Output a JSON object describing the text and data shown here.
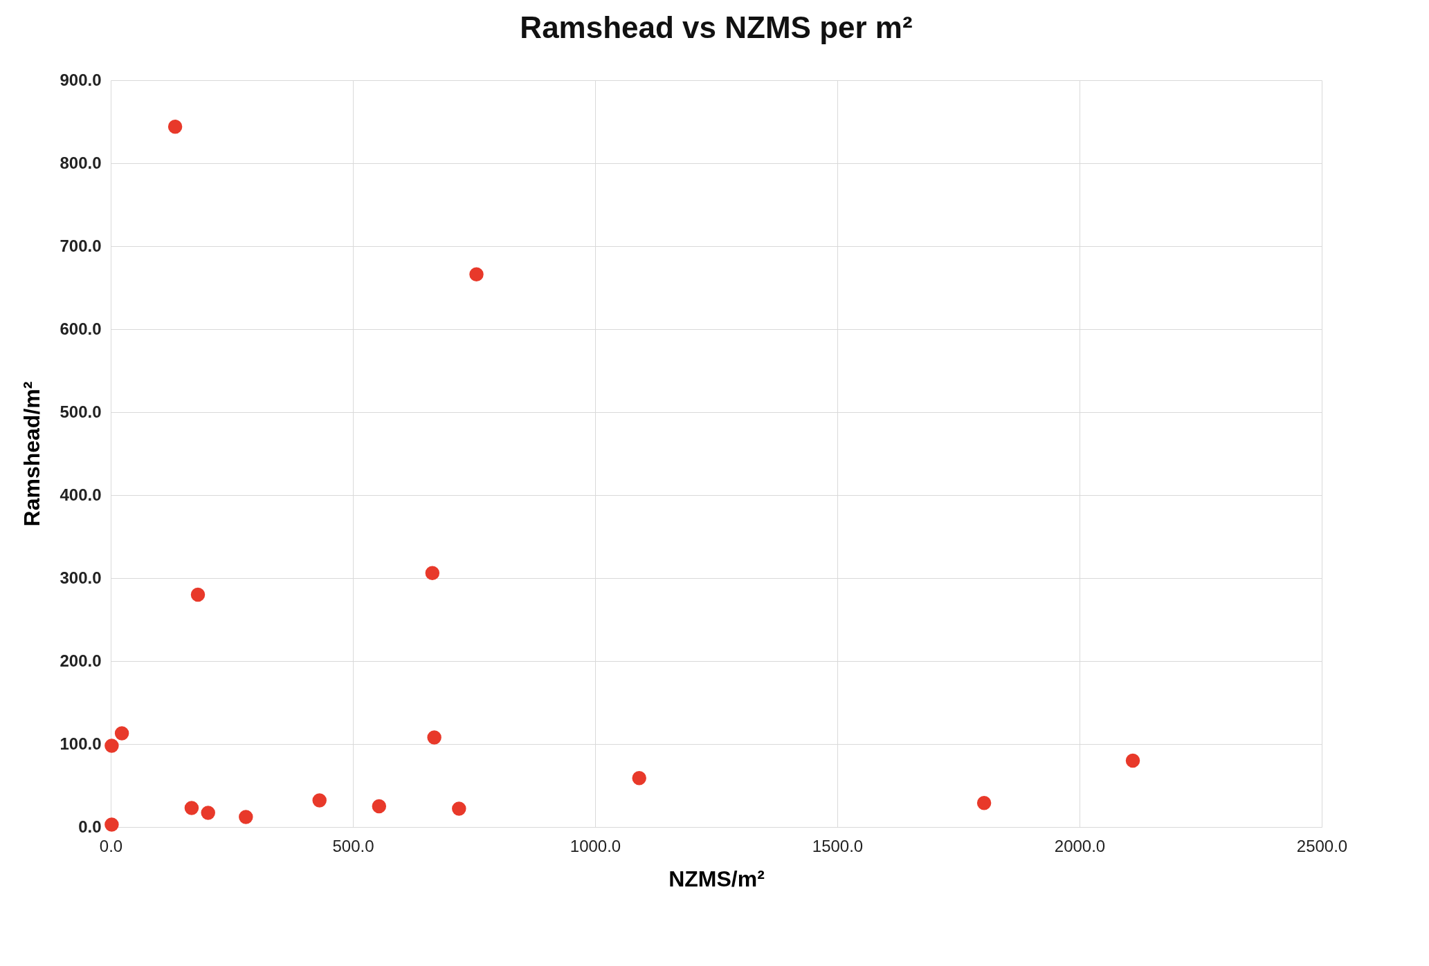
{
  "chart_data": {
    "type": "scatter",
    "title": "Ramshead vs NZMS per m²",
    "xlabel": "NZMS/m²",
    "ylabel": "Ramshead/m²",
    "x": [
      133,
      755,
      664,
      180,
      23,
      2,
      668,
      1091,
      2110,
      1803,
      2,
      167,
      201,
      279,
      431,
      554,
      719
    ],
    "series": [
      {
        "color": "#e8392a",
        "values": [
          844,
          666,
          306,
          280,
          113,
          98,
          108,
          59,
          80,
          29,
          3,
          23,
          17,
          12,
          32,
          25,
          22
        ]
      }
    ],
    "xlim": [
      0,
      2500
    ],
    "ylim": [
      0,
      900
    ],
    "xticks": [
      {
        "value": 0,
        "label": "0.0"
      },
      {
        "value": 500,
        "label": "500.0"
      },
      {
        "value": 1000,
        "label": "1000.0"
      },
      {
        "value": 1500,
        "label": "1500.0"
      },
      {
        "value": 2000,
        "label": "2000.0"
      },
      {
        "value": 2500,
        "label": "2500.0"
      }
    ],
    "yticks": [
      {
        "value": 0,
        "label": "0.0"
      },
      {
        "value": 100,
        "label": "100.0"
      },
      {
        "value": 200,
        "label": "200.0"
      },
      {
        "value": 300,
        "label": "300.0"
      },
      {
        "value": 400,
        "label": "400.0"
      },
      {
        "value": 500,
        "label": "500.0"
      },
      {
        "value": 600,
        "label": "600.0"
      },
      {
        "value": 700,
        "label": "700.0"
      },
      {
        "value": 800,
        "label": "800.0"
      },
      {
        "value": 900,
        "label": "900.0"
      }
    ],
    "grid": true,
    "marker": "circle"
  }
}
